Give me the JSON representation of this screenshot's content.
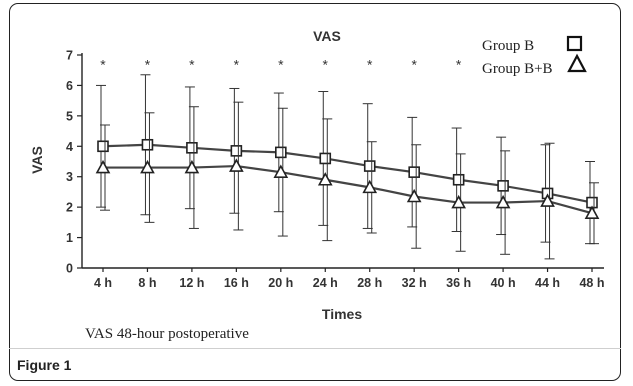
{
  "figure_label": "Figure 1",
  "chart_data": {
    "type": "line",
    "title": "VAS",
    "subtitle": "VAS  48-hour postoperative",
    "xlabel": "Times",
    "ylabel": "VAS",
    "categories": [
      "4 h",
      "8 h",
      "12 h",
      "16 h",
      "20 h",
      "24 h",
      "28 h",
      "32 h",
      "36 h",
      "40 h",
      "44 h",
      "48 h"
    ],
    "ylim": [
      0,
      7
    ],
    "yticks": [
      "0",
      "1",
      "2",
      "3",
      "4",
      "5",
      "6",
      "7"
    ],
    "significance_marker": "*",
    "significant_indices": [
      0,
      1,
      2,
      3,
      4,
      5,
      6,
      7,
      8
    ],
    "series": [
      {
        "name": "Group B",
        "marker": "square",
        "values": [
          4.0,
          4.05,
          3.95,
          3.85,
          3.8,
          3.6,
          3.35,
          3.15,
          2.9,
          2.7,
          2.45,
          2.15
        ],
        "error": [
          2.0,
          2.3,
          2.0,
          2.05,
          1.95,
          2.2,
          2.05,
          1.8,
          1.7,
          1.6,
          1.6,
          1.35
        ]
      },
      {
        "name": "Group B+B",
        "marker": "triangle",
        "values": [
          3.3,
          3.3,
          3.3,
          3.35,
          3.15,
          2.9,
          2.65,
          2.35,
          2.15,
          2.15,
          2.2,
          1.8
        ],
        "error": [
          1.4,
          1.8,
          2.0,
          2.1,
          2.1,
          2.0,
          1.5,
          1.7,
          1.6,
          1.7,
          1.9,
          1.0
        ]
      }
    ],
    "legend_position": "top-right",
    "grid": false
  }
}
